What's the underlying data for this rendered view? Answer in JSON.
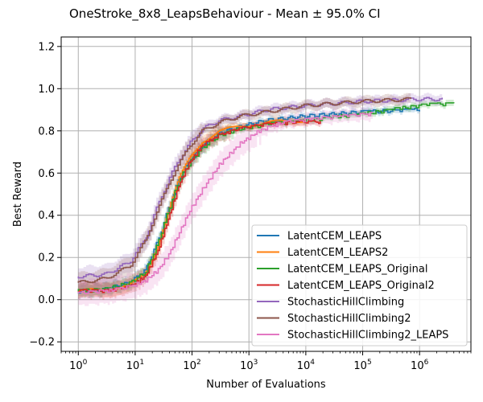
{
  "chart_data": {
    "type": "line",
    "title": "OneStroke_8x8_LeapsBehaviour - Mean ± 95.0% CI",
    "xlabel": "Number of Evaluations",
    "ylabel": "Best Reward",
    "xscale": "log",
    "xlim": [
      0.5,
      8000000
    ],
    "ylim": [
      -0.245,
      1.245
    ],
    "x_ticks": [
      1,
      10,
      100,
      1000,
      10000,
      100000,
      1000000
    ],
    "x_tick_labels": [
      "10^0",
      "10^1",
      "10^2",
      "10^3",
      "10^4",
      "10^5",
      "10^6"
    ],
    "y_ticks": [
      -0.2,
      0.0,
      0.2,
      0.4,
      0.6,
      0.8,
      1.0,
      1.2
    ],
    "y_tick_labels": [
      "−0.2",
      "0.0",
      "0.2",
      "0.4",
      "0.6",
      "0.8",
      "1.0",
      "1.2"
    ],
    "grid": true,
    "legend_position": "lower-right",
    "series": [
      {
        "name": "LatentCEM_LEAPS",
        "color": "#1f77b4",
        "points": [
          [
            1,
            0.04
          ],
          [
            3,
            0.05
          ],
          [
            8,
            0.08
          ],
          [
            15,
            0.14
          ],
          [
            25,
            0.28
          ],
          [
            40,
            0.45
          ],
          [
            60,
            0.58
          ],
          [
            90,
            0.66
          ],
          [
            150,
            0.73
          ],
          [
            300,
            0.79
          ],
          [
            700,
            0.82
          ],
          [
            2000,
            0.85
          ],
          [
            10000,
            0.87
          ],
          [
            100000,
            0.89
          ],
          [
            1000000,
            0.9
          ]
        ],
        "ci": 0.03
      },
      {
        "name": "LatentCEM_LEAPS2",
        "color": "#ff7f0e",
        "points": [
          [
            1,
            0.04
          ],
          [
            3,
            0.05
          ],
          [
            8,
            0.07
          ],
          [
            15,
            0.12
          ],
          [
            25,
            0.26
          ],
          [
            40,
            0.44
          ],
          [
            60,
            0.58
          ],
          [
            90,
            0.67
          ],
          [
            150,
            0.75
          ],
          [
            300,
            0.8
          ],
          [
            700,
            0.82
          ],
          [
            2000,
            0.84
          ],
          [
            10000,
            0.85
          ]
        ],
        "ci": 0.035
      },
      {
        "name": "LatentCEM_LEAPS_Original",
        "color": "#2ca02c",
        "points": [
          [
            1,
            0.04
          ],
          [
            3,
            0.05
          ],
          [
            8,
            0.08
          ],
          [
            15,
            0.13
          ],
          [
            25,
            0.27
          ],
          [
            40,
            0.44
          ],
          [
            60,
            0.57
          ],
          [
            90,
            0.65
          ],
          [
            150,
            0.72
          ],
          [
            300,
            0.78
          ],
          [
            700,
            0.81
          ],
          [
            2000,
            0.83
          ],
          [
            10000,
            0.85
          ],
          [
            100000,
            0.88
          ],
          [
            1000000,
            0.92
          ],
          [
            4000000,
            0.93
          ]
        ],
        "ci": 0.03
      },
      {
        "name": "LatentCEM_LEAPS_Original2",
        "color": "#d62728",
        "points": [
          [
            1,
            0.04
          ],
          [
            3,
            0.04
          ],
          [
            8,
            0.06
          ],
          [
            15,
            0.11
          ],
          [
            25,
            0.23
          ],
          [
            40,
            0.4
          ],
          [
            60,
            0.55
          ],
          [
            90,
            0.65
          ],
          [
            150,
            0.73
          ],
          [
            300,
            0.78
          ],
          [
            700,
            0.81
          ],
          [
            2000,
            0.83
          ],
          [
            8000,
            0.84
          ],
          [
            18000,
            0.84
          ]
        ],
        "ci": 0.035
      },
      {
        "name": "StochasticHillClimbing",
        "color": "#9467bd",
        "points": [
          [
            1,
            0.11
          ],
          [
            3,
            0.12
          ],
          [
            8,
            0.18
          ],
          [
            15,
            0.29
          ],
          [
            25,
            0.45
          ],
          [
            40,
            0.58
          ],
          [
            60,
            0.67
          ],
          [
            90,
            0.74
          ],
          [
            150,
            0.81
          ],
          [
            300,
            0.85
          ],
          [
            700,
            0.87
          ],
          [
            2000,
            0.9
          ],
          [
            10000,
            0.92
          ],
          [
            100000,
            0.94
          ],
          [
            1000000,
            0.95
          ],
          [
            2500000,
            0.95
          ]
        ],
        "ci": 0.045
      },
      {
        "name": "StochasticHillClimbing2",
        "color": "#8c564b",
        "points": [
          [
            1,
            0.08
          ],
          [
            3,
            0.1
          ],
          [
            8,
            0.16
          ],
          [
            15,
            0.28
          ],
          [
            25,
            0.43
          ],
          [
            40,
            0.56
          ],
          [
            60,
            0.65
          ],
          [
            90,
            0.73
          ],
          [
            150,
            0.8
          ],
          [
            300,
            0.84
          ],
          [
            700,
            0.87
          ],
          [
            2000,
            0.89
          ],
          [
            10000,
            0.92
          ],
          [
            100000,
            0.94
          ],
          [
            700000,
            0.95
          ]
        ],
        "ci": 0.045
      },
      {
        "name": "StochasticHillClimbing2_LEAPS",
        "color": "#e377c2",
        "points": [
          [
            1,
            0.03
          ],
          [
            3,
            0.04
          ],
          [
            8,
            0.06
          ],
          [
            15,
            0.09
          ],
          [
            25,
            0.14
          ],
          [
            40,
            0.22
          ],
          [
            60,
            0.32
          ],
          [
            90,
            0.42
          ],
          [
            150,
            0.52
          ],
          [
            300,
            0.64
          ],
          [
            700,
            0.74
          ],
          [
            1500,
            0.8
          ],
          [
            4000,
            0.84
          ],
          [
            20000,
            0.86
          ],
          [
            150000,
            0.88
          ]
        ],
        "ci": 0.06
      }
    ]
  }
}
